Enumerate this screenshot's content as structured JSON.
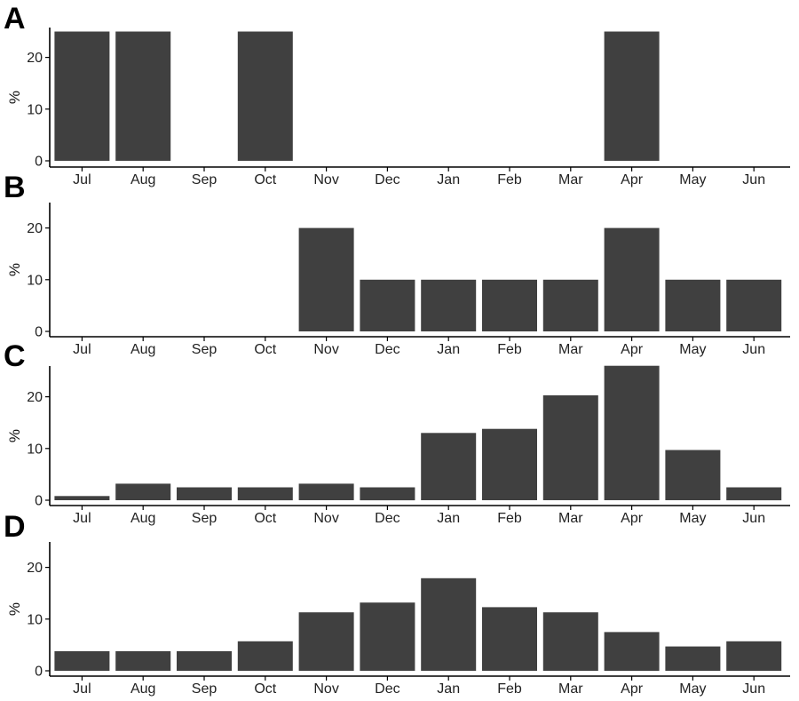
{
  "figure": {
    "bar_color": "#404040",
    "background": "#ffffff"
  },
  "chart_data": [
    {
      "type": "bar",
      "panel_label": "A",
      "categories": [
        "Jul",
        "Aug",
        "Sep",
        "Oct",
        "Nov",
        "Dec",
        "Jan",
        "Feb",
        "Mar",
        "Apr",
        "May",
        "Jun"
      ],
      "values": [
        25,
        25,
        0,
        25,
        0,
        0,
        0,
        0,
        0,
        25,
        0,
        0
      ],
      "xlabel": "",
      "ylabel": "%",
      "ylim": [
        0,
        25
      ],
      "yticks": [
        0,
        10,
        20
      ],
      "grid": false
    },
    {
      "type": "bar",
      "panel_label": "B",
      "categories": [
        "Jul",
        "Aug",
        "Sep",
        "Oct",
        "Nov",
        "Dec",
        "Jan",
        "Feb",
        "Mar",
        "Apr",
        "May",
        "Jun"
      ],
      "values": [
        0,
        0,
        0,
        0,
        20,
        10,
        10,
        10,
        10,
        20,
        10,
        10
      ],
      "xlabel": "",
      "ylabel": "%",
      "ylim": [
        0,
        25
      ],
      "yticks": [
        0,
        10,
        20
      ],
      "grid": false
    },
    {
      "type": "bar",
      "panel_label": "C",
      "categories": [
        "Jul",
        "Aug",
        "Sep",
        "Oct",
        "Nov",
        "Dec",
        "Jan",
        "Feb",
        "Mar",
        "Apr",
        "May",
        "Jun"
      ],
      "values": [
        0.8,
        3.2,
        2.5,
        2.5,
        3.2,
        2.5,
        13.0,
        13.8,
        20.3,
        26.0,
        9.7,
        2.5
      ],
      "xlabel": "",
      "ylabel": "%",
      "ylim": [
        0,
        25
      ],
      "yticks": [
        0,
        10,
        20
      ],
      "grid": false
    },
    {
      "type": "bar",
      "panel_label": "D",
      "categories": [
        "Jul",
        "Aug",
        "Sep",
        "Oct",
        "Nov",
        "Dec",
        "Jan",
        "Feb",
        "Mar",
        "Apr",
        "May",
        "Jun"
      ],
      "values": [
        3.8,
        3.8,
        3.8,
        5.7,
        11.3,
        13.2,
        17.9,
        12.3,
        11.3,
        7.5,
        4.7,
        5.7
      ],
      "xlabel": "",
      "ylabel": "%",
      "ylim": [
        0,
        25
      ],
      "yticks": [
        0,
        10,
        20
      ],
      "grid": false
    }
  ]
}
